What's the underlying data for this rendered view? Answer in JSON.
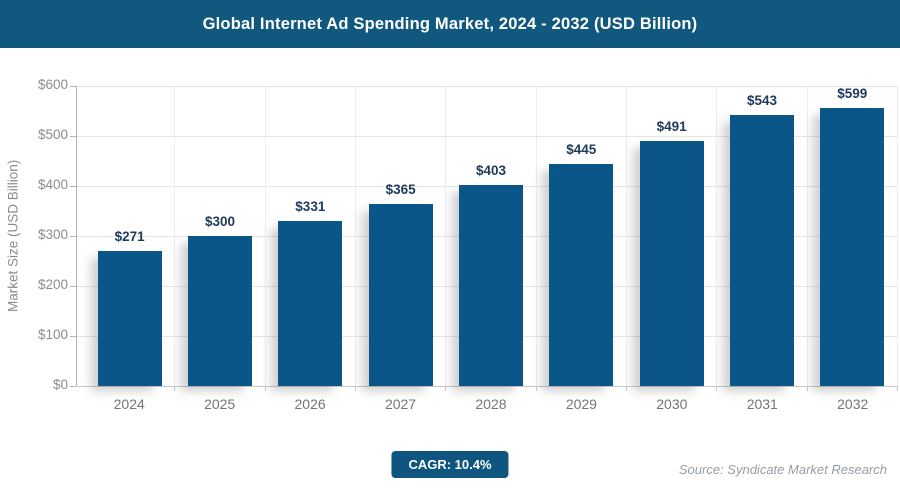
{
  "header": {
    "title": "Global Internet Ad Spending Market, 2024 - 2032 (USD Billion)",
    "bg": "#11587E",
    "text_color": "#FFFFFF"
  },
  "chart_data": {
    "type": "bar",
    "title": "Global Internet Ad Spending Market, 2024 - 2032 (USD Billion)",
    "categories": [
      "2024",
      "2025",
      "2026",
      "2027",
      "2028",
      "2029",
      "2030",
      "2031",
      "2032"
    ],
    "values": [
      271,
      300,
      331,
      365,
      403,
      445,
      491,
      543,
      599
    ],
    "value_labels": [
      "$271",
      "$300",
      "$331",
      "$365",
      "$403",
      "$445",
      "$491",
      "$543",
      "$599"
    ],
    "xlabel": "",
    "ylabel": "Market Size (USD Billion)",
    "ylim": [
      0,
      600
    ],
    "ytick_step": 100,
    "ytick_labels": [
      "$0",
      "$100",
      "$200",
      "$300",
      "$400",
      "$500",
      "$600"
    ],
    "grid": true,
    "legend": "none",
    "bar_color": "#0B5689",
    "value_label_color": "#1E3A5A",
    "axis_label_color": "#8C8C8C"
  },
  "footer": {
    "cagr_label": "CAGR: 10.4%",
    "badge_bg": "#0E567F",
    "source": "Source: Syndicate Market Research"
  }
}
